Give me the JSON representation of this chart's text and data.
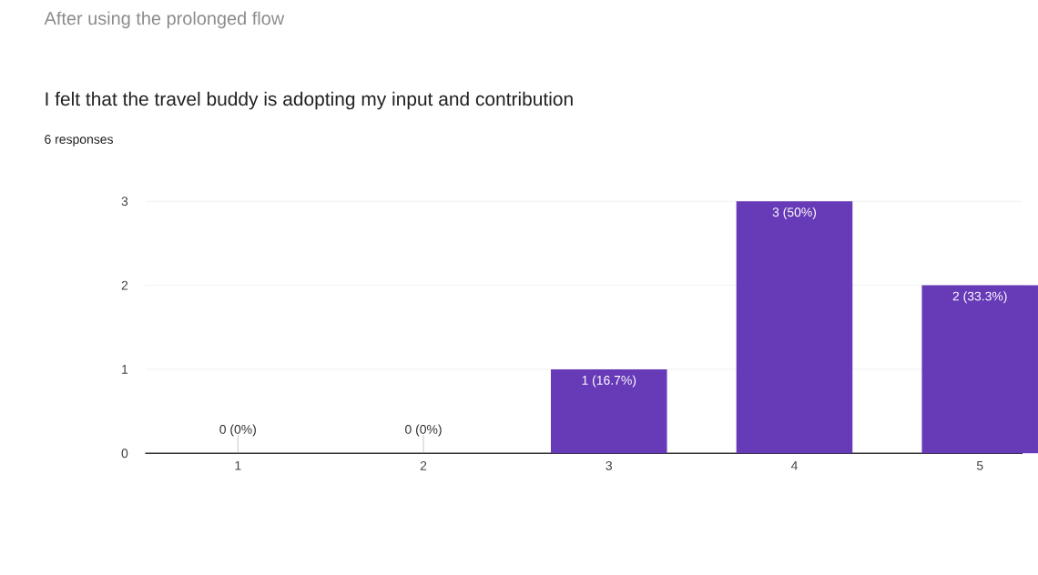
{
  "chart_data": {
    "type": "bar",
    "title": "I felt that the travel buddy is adopting my input and contribution",
    "subtitle": "6 responses",
    "annotations": [
      "After using the prolonged flow"
    ],
    "categories": [
      "1",
      "2",
      "3",
      "4",
      "5"
    ],
    "values": [
      0,
      0,
      1,
      3,
      2
    ],
    "value_labels": [
      "0 (0%)",
      "0 (0%)",
      "1 (16.7%)",
      "3 (50%)",
      "2 (33.3%)"
    ],
    "color": "#673ab7",
    "ylim": [
      0,
      3
    ],
    "yticks": [
      0,
      1,
      2,
      3
    ],
    "grid": "y"
  }
}
